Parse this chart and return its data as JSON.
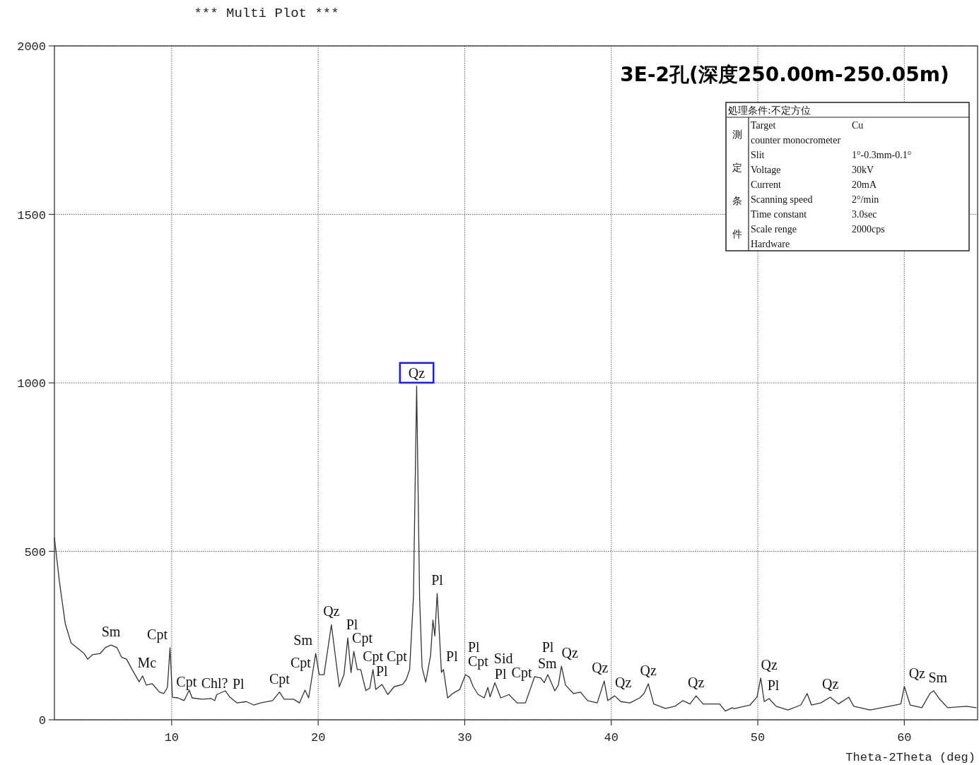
{
  "chart_data": [
    {
      "type": "line",
      "title": "***   Multi Plot   ***",
      "subtitle": "3E-2孔(深度250.00m-250.05m)",
      "xlabel": "Theta-2Theta (deg)",
      "xlim": [
        2,
        65
      ],
      "xticks": [
        10,
        20,
        30,
        40,
        50,
        60
      ],
      "ylim": [
        0,
        2000
      ],
      "yticks": [
        0,
        500,
        1000,
        1500,
        2000
      ],
      "grid": true,
      "marker": "none",
      "line_style": "solid",
      "series": [
        {
          "color": "#333333",
          "x": [
            2.0,
            2.34,
            2.74,
            3.14,
            3.54,
            4.02,
            4.27,
            4.59,
            5.13,
            5.47,
            5.86,
            6.27,
            6.58,
            6.92,
            7.3,
            7.78,
            8.02,
            8.27,
            8.68,
            9.17,
            9.47,
            9.71,
            9.89,
            10.05,
            10.43,
            10.85,
            11.2,
            11.4,
            12.06,
            12.7,
            12.94,
            13.08,
            13.66,
            13.98,
            14.47,
            15.1,
            15.6,
            16.07,
            16.88,
            17.36,
            17.68,
            18.32,
            18.72,
            19.1,
            19.35,
            19.83,
            20.07,
            20.4,
            20.9,
            21.44,
            21.76,
            22.02,
            22.24,
            22.43,
            22.67,
            22.9,
            23.25,
            23.52,
            23.74,
            23.93,
            24.35,
            24.75,
            25.18,
            25.76,
            26.0,
            26.24,
            26.5,
            26.72,
            26.92,
            27.09,
            27.34,
            27.67,
            27.83,
            27.96,
            28.12,
            28.28,
            28.41,
            28.55,
            28.83,
            29.25,
            29.66,
            30.05,
            30.33,
            30.58,
            30.92,
            31.33,
            31.58,
            31.73,
            32.06,
            32.46,
            33.02,
            33.57,
            34.14,
            34.77,
            35.19,
            35.43,
            35.67,
            36.15,
            36.39,
            36.6,
            36.88,
            37.42,
            37.9,
            38.39,
            39.04,
            39.52,
            39.76,
            40.24,
            40.65,
            41.27,
            41.94,
            42.24,
            42.53,
            42.9,
            43.69,
            44.35,
            44.89,
            45.37,
            45.79,
            46.27,
            47.4,
            47.78,
            48.27,
            48.36,
            49.47,
            49.95,
            50.2,
            50.44,
            50.77,
            51.25,
            52.06,
            52.94,
            53.37,
            53.66,
            54.29,
            54.95,
            55.5,
            56.21,
            56.55,
            57.66,
            58.96,
            59.76,
            60.0,
            60.4,
            61.2,
            61.75,
            62.0,
            62.38,
            62.96,
            64.26,
            64.9
          ],
          "values": [
            540,
            410,
            285,
            228,
            214,
            197,
            180,
            193,
            197,
            214,
            222,
            214,
            186,
            180,
            149,
            113,
            130,
            103,
            107,
            82,
            78,
            96,
            214,
            67,
            65,
            57,
            88,
            65,
            61,
            63,
            57,
            75,
            86,
            67,
            50,
            54,
            44,
            50,
            57,
            82,
            61,
            61,
            50,
            88,
            65,
            197,
            134,
            134,
            282,
            98,
            134,
            243,
            140,
            203,
            149,
            149,
            87,
            94,
            149,
            90,
            105,
            75,
            98,
            105,
            119,
            149,
            364,
            990,
            364,
            155,
            112,
            191,
            296,
            249,
            375,
            249,
            141,
            149,
            65,
            80,
            90,
            134,
            126,
            98,
            75,
            65,
            96,
            68,
            110,
            65,
            75,
            50,
            50,
            128,
            124,
            110,
            134,
            86,
            103,
            159,
            103,
            78,
            82,
            57,
            50,
            115,
            57,
            71,
            54,
            50,
            65,
            78,
            107,
            47,
            34,
            40,
            57,
            47,
            71,
            47,
            47,
            26,
            36,
            33,
            44,
            68,
            124,
            54,
            63,
            40,
            29,
            44,
            78,
            44,
            50,
            67,
            47,
            67,
            40,
            29,
            40,
            47,
            99,
            44,
            36,
            78,
            86,
            63,
            36,
            40,
            36
          ]
        }
      ],
      "annotations": [
        {
          "text": "Sm",
          "x": 5.86,
          "y": 222
        },
        {
          "text": "Mc",
          "x": 8.02,
          "y": 130
        },
        {
          "text": "Cpt",
          "x": 9.89,
          "y": 214
        },
        {
          "text": "Cpt",
          "x": 10.43,
          "y": 65
        },
        {
          "text": "Chl?",
          "x": 12.06,
          "y": 61
        },
        {
          "text": "Pl",
          "x": 13.98,
          "y": 67
        },
        {
          "text": "Cpt",
          "x": 17.36,
          "y": 82
        },
        {
          "text": "Cpt",
          "x": 19.1,
          "y": 88
        },
        {
          "text": "Sm",
          "x": 19.83,
          "y": 197
        },
        {
          "text": "Qz",
          "x": 20.9,
          "y": 282
        },
        {
          "text": "Pl",
          "x": 22.02,
          "y": 243
        },
        {
          "text": "Cpt",
          "x": 22.43,
          "y": 203
        },
        {
          "text": "Cpt",
          "x": 23.74,
          "y": 149
        },
        {
          "text": "Pl",
          "x": 24.35,
          "y": 105
        },
        {
          "text": "Cpt",
          "x": 26.24,
          "y": 149
        },
        {
          "text": "Qz",
          "x": 26.72,
          "y": 990
        },
        {
          "text": "Pl",
          "x": 28.12,
          "y": 375
        },
        {
          "text": "Pl",
          "x": 28.55,
          "y": 149
        },
        {
          "text": "Cpt",
          "x": 30.05,
          "y": 134
        },
        {
          "text": "Pl",
          "x": 30.33,
          "y": 126
        },
        {
          "text": "Pl",
          "x": 31.58,
          "y": 96
        },
        {
          "text": "Sid",
          "x": 32.06,
          "y": 110
        },
        {
          "text": "Cpt",
          "x": 33.02,
          "y": 75
        },
        {
          "text": "Sm",
          "x": 34.77,
          "y": 128
        },
        {
          "text": "Pl",
          "x": 35.67,
          "y": 134
        },
        {
          "text": "Qz",
          "x": 36.6,
          "y": 159
        },
        {
          "text": "Qz",
          "x": 39.52,
          "y": 115
        },
        {
          "text": "Qz",
          "x": 40.24,
          "y": 71
        },
        {
          "text": "Qz",
          "x": 42.53,
          "y": 107
        },
        {
          "text": "Qz",
          "x": 45.79,
          "y": 71
        },
        {
          "text": "Qz",
          "x": 50.2,
          "y": 124
        },
        {
          "text": "Pl",
          "x": 50.77,
          "y": 63
        },
        {
          "text": "Qz",
          "x": 54.95,
          "y": 67
        },
        {
          "text": "Qz",
          "x": 60.0,
          "y": 99
        },
        {
          "text": "Sm",
          "x": 62.0,
          "y": 86
        }
      ]
    },
    {
      "type": "other",
      "title": "処理条件:不定方位",
      "y_categories": [
        "測",
        "定",
        "条",
        "件"
      ],
      "categories": [
        "Target",
        "counter  monocrometer",
        "Slit",
        "Voltage",
        "Current",
        "Scanning speed",
        "Time constant",
        "Scale renge",
        "Hardware"
      ],
      "value_labels": [
        "Cu",
        null,
        "1°-0.3mm-0.1°",
        "30kV",
        "20mA",
        "2°/min",
        "3.0sec",
        "2000cps",
        null
      ]
    }
  ]
}
